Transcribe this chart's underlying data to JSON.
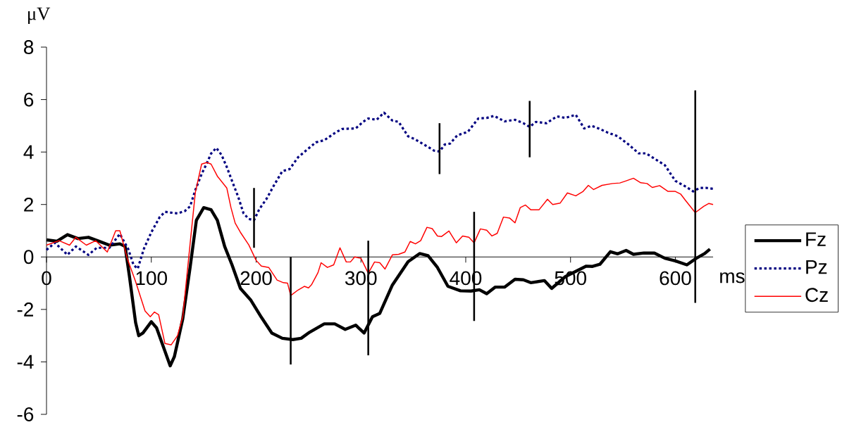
{
  "chart_data": {
    "type": "line",
    "xlabel": "ms",
    "ylabel": "μV",
    "xlim": [
      0,
      636
    ],
    "xticks": [
      0,
      100,
      200,
      300,
      400,
      500,
      600
    ],
    "ylim": [
      -6,
      8
    ],
    "yticks": [
      -6,
      -4,
      -2,
      0,
      2,
      4,
      6,
      8
    ],
    "grid": false,
    "legend": "right",
    "series": [
      {
        "name": "Fz",
        "color": "#000000",
        "line_style": "solid",
        "x": [
          0,
          10,
          20,
          30,
          40,
          50,
          60,
          70,
          75,
          79,
          85,
          88,
          92,
          100,
          105,
          118,
          122,
          130,
          137,
          143,
          150,
          157,
          163,
          170,
          177,
          185,
          195,
          205,
          215,
          225,
          235,
          243,
          251,
          265,
          275,
          285,
          295,
          303,
          311,
          318,
          330,
          345,
          356,
          364,
          373,
          383,
          395,
          405,
          413,
          420,
          428,
          437,
          447,
          455,
          462,
          475,
          482,
          495,
          505,
          515,
          521,
          528,
          538,
          545,
          553,
          560,
          570,
          580,
          590,
          600,
          611,
          620,
          628,
          633
        ],
        "values": [
          0.65,
          0.6,
          0.85,
          0.7,
          0.75,
          0.6,
          0.45,
          0.5,
          0.4,
          -0.7,
          -2.5,
          -3.0,
          -2.9,
          -2.47,
          -2.7,
          -4.15,
          -3.8,
          -2.36,
          -0.4,
          1.4,
          1.88,
          1.8,
          1.4,
          0.4,
          -0.3,
          -1.2,
          -1.65,
          -2.3,
          -2.9,
          -3.1,
          -3.15,
          -3.1,
          -2.87,
          -2.55,
          -2.55,
          -2.76,
          -2.6,
          -2.9,
          -2.28,
          -2.15,
          -1.07,
          -0.18,
          0.13,
          0.05,
          -0.4,
          -1.12,
          -1.29,
          -1.3,
          -1.25,
          -1.4,
          -1.15,
          -1.15,
          -0.85,
          -0.87,
          -0.98,
          -0.9,
          -1.2,
          -0.75,
          -0.55,
          -0.35,
          -0.36,
          -0.28,
          0.2,
          0.12,
          0.25,
          0.1,
          0.15,
          0.15,
          -0.05,
          -0.15,
          -0.3,
          -0.05,
          0.13,
          0.3
        ]
      },
      {
        "name": "Pz",
        "color": "#000080",
        "line_style": "dotted",
        "x": [
          0,
          8,
          20,
          28,
          40,
          48,
          60,
          70,
          78,
          83,
          87,
          93,
          100,
          108,
          113,
          125,
          132,
          137,
          142,
          148,
          152,
          157,
          162,
          167,
          172,
          177,
          183,
          188,
          193,
          198,
          203,
          210,
          217,
          225,
          232,
          240,
          248,
          257,
          265,
          276,
          282,
          295,
          302,
          307,
          315,
          322,
          330,
          336,
          345,
          352,
          360,
          370,
          375,
          380,
          385,
          392,
          402,
          412,
          420,
          427,
          437,
          447,
          455,
          461,
          467,
          477,
          487,
          495,
          505,
          513,
          520,
          528,
          535,
          545,
          555,
          565,
          572,
          580,
          590,
          600,
          610,
          617,
          623,
          630,
          636
        ],
        "values": [
          0.27,
          0.54,
          0.08,
          0.4,
          0.08,
          0.35,
          0.35,
          0.88,
          0.3,
          -0.3,
          -0.45,
          0.32,
          0.94,
          1.52,
          1.72,
          1.66,
          1.75,
          1.93,
          2.55,
          3.16,
          3.49,
          3.94,
          4.16,
          3.89,
          3.43,
          2.9,
          2.28,
          1.66,
          1.45,
          1.4,
          1.82,
          2.22,
          2.73,
          3.27,
          3.35,
          3.8,
          4.07,
          4.37,
          4.45,
          4.75,
          4.88,
          4.9,
          5.15,
          5.28,
          5.23,
          5.5,
          5.2,
          5.15,
          4.6,
          4.48,
          4.29,
          4.05,
          4.02,
          4.29,
          4.32,
          4.64,
          4.77,
          5.28,
          5.3,
          5.38,
          5.17,
          5.23,
          5.1,
          4.96,
          5.15,
          5.1,
          5.36,
          5.3,
          5.42,
          4.9,
          5.0,
          4.88,
          4.75,
          4.6,
          4.3,
          3.95,
          3.95,
          3.75,
          3.5,
          2.9,
          2.68,
          2.5,
          2.63,
          2.63,
          2.6
        ],
        "errors": [
          null,
          null,
          null,
          null,
          null,
          null,
          null,
          null,
          null,
          null,
          null,
          null,
          null,
          null,
          null,
          null,
          null,
          null,
          null,
          null,
          null,
          null,
          null,
          null,
          null,
          null,
          null,
          null,
          null,
          [
            0.35,
            2.63
          ],
          null,
          null,
          null,
          null,
          null,
          null,
          null,
          null,
          null,
          null,
          null,
          null,
          null,
          null,
          null,
          null,
          null,
          null,
          null,
          null,
          null,
          null,
          [
            3.16,
            5.1
          ],
          null,
          null,
          null,
          null,
          null,
          null,
          null,
          null,
          null,
          null,
          [
            3.8,
            5.95
          ],
          null,
          null,
          null,
          null,
          null,
          null,
          null,
          null,
          null,
          null,
          null,
          null,
          null,
          null,
          null,
          null,
          null,
          null,
          null,
          null,
          null
        ]
      },
      {
        "name": "Cz",
        "color": "#ff0000",
        "line_style": "solid",
        "x": [
          0,
          12,
          22,
          28,
          38,
          47,
          58,
          66,
          70,
          77,
          85,
          94,
          99,
          103,
          107,
          113,
          119,
          125,
          130,
          137,
          142,
          148,
          153,
          157,
          163,
          172,
          176,
          180,
          185,
          193,
          200,
          205,
          212,
          220,
          226,
          230,
          233,
          240,
          246,
          250,
          253,
          259,
          262,
          268,
          274,
          280,
          286,
          290,
          294,
          300,
          307,
          313,
          318,
          323,
          330,
          336,
          342,
          347,
          352,
          357,
          363,
          368,
          373,
          377,
          384,
          391,
          397,
          403,
          408,
          414,
          420,
          425,
          430,
          436,
          442,
          447,
          452,
          457,
          462,
          470,
          478,
          483,
          490,
          497,
          505,
          512,
          517,
          522,
          530,
          540,
          547,
          553,
          560,
          567,
          573,
          578,
          585,
          593,
          600,
          605,
          610,
          619,
          627,
          632,
          636
        ],
        "values": [
          0.45,
          0.62,
          0.45,
          0.75,
          0.45,
          0.62,
          0.19,
          1.0,
          1.0,
          -0.05,
          -0.94,
          -2.06,
          -2.28,
          -2.1,
          -2.2,
          -3.3,
          -3.35,
          -3.0,
          -2.28,
          0.5,
          2.46,
          3.54,
          3.6,
          3.54,
          3.08,
          2.63,
          1.88,
          1.29,
          0.94,
          0.46,
          -0.13,
          -0.35,
          -0.4,
          -0.88,
          -0.98,
          -1.0,
          -1.47,
          -1.26,
          -1.12,
          -1.18,
          -1.05,
          -0.6,
          -0.22,
          -0.4,
          -0.3,
          0.35,
          -0.19,
          -0.19,
          0.0,
          -0.05,
          -0.62,
          -0.19,
          -0.22,
          -0.46,
          0.08,
          0.1,
          0.19,
          0.59,
          0.5,
          0.62,
          1.13,
          1.08,
          0.8,
          0.78,
          0.99,
          0.54,
          0.8,
          0.75,
          0.54,
          1.07,
          1.02,
          0.8,
          0.9,
          1.52,
          1.48,
          1.3,
          1.88,
          1.98,
          1.8,
          1.8,
          2.2,
          2.0,
          2.05,
          2.44,
          2.33,
          2.5,
          2.73,
          2.57,
          2.73,
          2.8,
          2.82,
          2.9,
          3.0,
          2.83,
          2.8,
          2.65,
          2.72,
          2.5,
          2.5,
          2.4,
          2.14,
          1.69,
          1.93,
          2.04,
          2.0
        ],
        "errors": [
          null,
          null,
          null,
          null,
          null,
          null,
          null,
          null,
          null,
          null,
          null,
          null,
          null,
          null,
          null,
          null,
          null,
          null,
          null,
          null,
          null,
          null,
          null,
          null,
          null,
          null,
          null,
          null,
          null,
          null,
          null,
          null,
          null,
          null,
          null,
          null,
          [
            -4.1,
            0.0
          ],
          null,
          null,
          null,
          null,
          null,
          null,
          null,
          null,
          null,
          null,
          null,
          null,
          null,
          [
            -3.75,
            0.62
          ],
          null,
          null,
          null,
          null,
          null,
          null,
          null,
          null,
          null,
          null,
          null,
          null,
          null,
          null,
          null,
          null,
          null,
          [
            -2.44,
            1.72
          ],
          null,
          null,
          null,
          null,
          null,
          null,
          null,
          null,
          null,
          null,
          null,
          null,
          null,
          null,
          null,
          null,
          null,
          null,
          null,
          null,
          null,
          null,
          null,
          null,
          null,
          null,
          null,
          null,
          null,
          null,
          null,
          null,
          [
            -1.75,
            6.35
          ],
          null,
          null,
          null
        ]
      }
    ]
  }
}
